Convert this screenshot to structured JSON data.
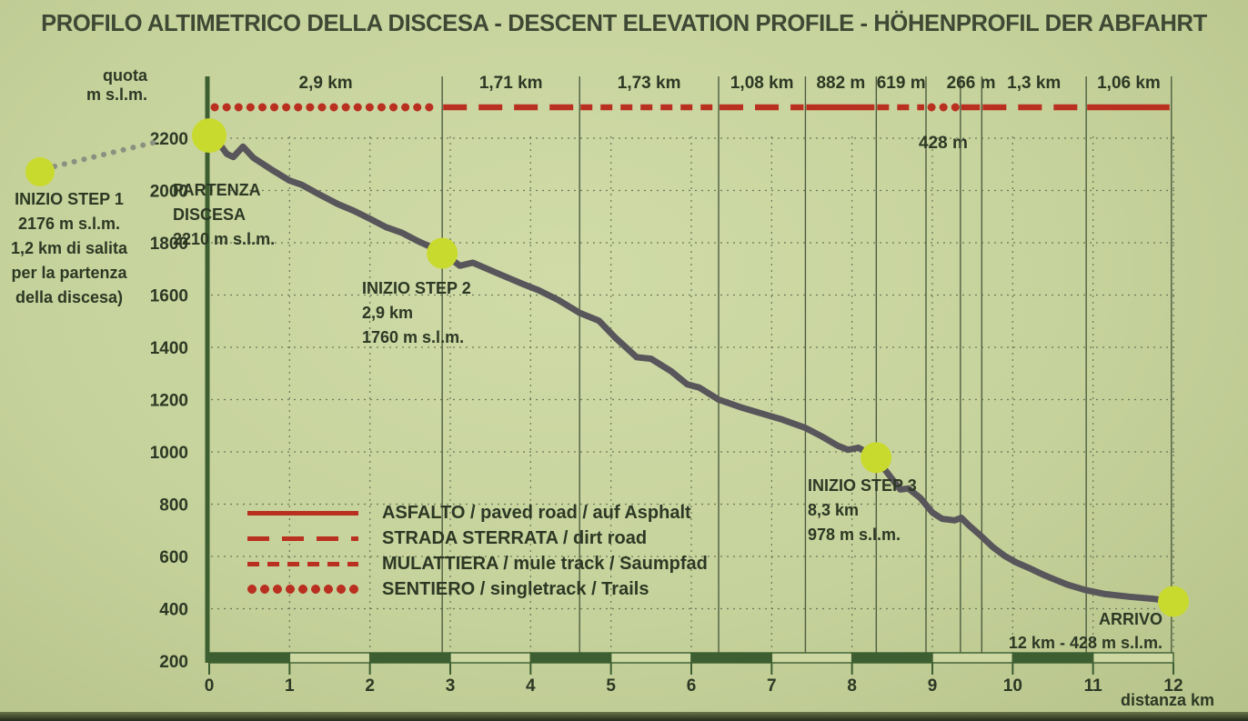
{
  "title": "PROFILO ALTIMETRICO DELLA DISCESA - DESCENT ELEVATION PROFILE - HÖHENPROFIL DER ABFAHRT",
  "axes": {
    "y_label_line1": "quota",
    "y_label_line2": "m s.l.m.",
    "x_label": "distanza km",
    "y_ticks": [
      2200,
      2000,
      1800,
      1600,
      1400,
      1200,
      1000,
      800,
      600,
      400,
      200
    ],
    "x_ticks": [
      0,
      1,
      2,
      3,
      4,
      5,
      6,
      7,
      8,
      9,
      10,
      11,
      12
    ]
  },
  "colors": {
    "background": "#c6d29b",
    "red_surface": "#b93020",
    "axis_green": "#3c5e31",
    "profile_gray": "#58565b",
    "waypoint_yellow": "#c9da2e",
    "text_dark": "#2c3824"
  },
  "legend": [
    {
      "style": "solid",
      "label": "ASFALTO / paved road / auf Asphalt"
    },
    {
      "style": "long-dash",
      "label": "STRADA STERRATA / dirt road"
    },
    {
      "style": "short-dash",
      "label": "MULATTIERA / mule track / Saumpfad"
    },
    {
      "style": "dotted",
      "label": "SENTIERO / singletrack / Trails"
    }
  ],
  "annotations": {
    "step1": {
      "lines": [
        "INIZIO STEP 1",
        "2176 m s.l.m.",
        "1,2 km di salita",
        "per la partenza",
        "della discesa)"
      ]
    },
    "partenza": {
      "lines": [
        "PARTENZA",
        "DISCESA",
        "2210 m s.l.m."
      ]
    },
    "step2": {
      "lines": [
        "INIZIO STEP 2",
        "2,9 km",
        "1760  m s.l.m."
      ]
    },
    "step3": {
      "lines": [
        "INIZIO STEP 3",
        "8,3 km",
        "978 m s.l.m."
      ]
    },
    "arrivo": {
      "lines": [
        "ARRIVO",
        "12 km - 428 m s.l.m."
      ]
    }
  },
  "chart_data": {
    "type": "line",
    "title": "PROFILO ALTIMETRICO DELLA DISCESA - DESCENT ELEVATION PROFILE - HÖHENPROFIL DER ABFAHRT",
    "xlabel": "distanza km",
    "ylabel": "quota m s.l.m.",
    "xlim": [
      0,
      12
    ],
    "ylim": [
      200,
      2200
    ],
    "grid": true,
    "surface_segments": [
      {
        "label": "2,9 km",
        "length_km": 2.9,
        "style": "dotted",
        "surface": "sentiero"
      },
      {
        "label": "1,71 km",
        "length_km": 1.71,
        "style": "long-dash",
        "surface": "strada-sterrata"
      },
      {
        "label": "1,73 km",
        "length_km": 1.73,
        "style": "short-dash",
        "surface": "mulattiera"
      },
      {
        "label": "1,08 km",
        "length_km": 1.08,
        "style": "long-dash",
        "surface": "strada-sterrata"
      },
      {
        "label": "882 m",
        "length_km": 0.882,
        "style": "solid",
        "surface": "asfalto"
      },
      {
        "label": "619 m",
        "length_km": 0.619,
        "style": "short-dash",
        "surface": "mulattiera"
      },
      {
        "label": "428 m",
        "length_km": 0.428,
        "style": "dotted",
        "surface": "sentiero",
        "label_below": true
      },
      {
        "label": "266 m",
        "length_km": 0.266,
        "style": "solid",
        "surface": "asfalto"
      },
      {
        "label": "1,3 km",
        "length_km": 1.3,
        "style": "long-dash",
        "surface": "strada-sterrata"
      },
      {
        "label": "1,06 km",
        "length_km": 1.06,
        "style": "solid",
        "surface": "asfalto"
      }
    ],
    "waypoints": [
      {
        "id": "inizio-step1",
        "name": "INIZIO STEP 1",
        "km": null,
        "elev": 2176
      },
      {
        "id": "partenza-discesa",
        "name": "PARTENZA DISCESA",
        "km": 0,
        "elev": 2210
      },
      {
        "id": "inizio-step2",
        "name": "INIZIO STEP 2",
        "km": 2.9,
        "elev": 1760
      },
      {
        "id": "inizio-step3",
        "name": "INIZIO STEP 3",
        "km": 8.3,
        "elev": 978
      },
      {
        "id": "arrivo",
        "name": "ARRIVO",
        "km": 12,
        "elev": 428
      }
    ],
    "profile": [
      [
        0,
        2210
      ],
      [
        0.1,
        2190
      ],
      [
        0.22,
        2140
      ],
      [
        0.3,
        2128
      ],
      [
        0.42,
        2168
      ],
      [
        0.55,
        2125
      ],
      [
        0.8,
        2075
      ],
      [
        1.0,
        2038
      ],
      [
        1.15,
        2022
      ],
      [
        1.35,
        1988
      ],
      [
        1.6,
        1948
      ],
      [
        1.8,
        1922
      ],
      [
        2.0,
        1892
      ],
      [
        2.2,
        1860
      ],
      [
        2.4,
        1838
      ],
      [
        2.6,
        1806
      ],
      [
        2.8,
        1778
      ],
      [
        2.9,
        1760
      ],
      [
        3.0,
        1740
      ],
      [
        3.12,
        1712
      ],
      [
        3.28,
        1724
      ],
      [
        3.55,
        1688
      ],
      [
        3.75,
        1662
      ],
      [
        3.92,
        1640
      ],
      [
        4.1,
        1618
      ],
      [
        4.35,
        1580
      ],
      [
        4.61,
        1532
      ],
      [
        4.85,
        1502
      ],
      [
        5.05,
        1438
      ],
      [
        5.2,
        1396
      ],
      [
        5.32,
        1362
      ],
      [
        5.5,
        1356
      ],
      [
        5.75,
        1308
      ],
      [
        5.95,
        1258
      ],
      [
        6.1,
        1246
      ],
      [
        6.34,
        1200
      ],
      [
        6.62,
        1170
      ],
      [
        6.93,
        1142
      ],
      [
        7.13,
        1124
      ],
      [
        7.42,
        1092
      ],
      [
        7.63,
        1058
      ],
      [
        7.82,
        1024
      ],
      [
        7.95,
        1008
      ],
      [
        8.08,
        1016
      ],
      [
        8.3,
        978
      ],
      [
        8.38,
        944
      ],
      [
        8.5,
        896
      ],
      [
        8.6,
        856
      ],
      [
        8.7,
        860
      ],
      [
        8.85,
        824
      ],
      [
        9.0,
        768
      ],
      [
        9.12,
        744
      ],
      [
        9.28,
        738
      ],
      [
        9.36,
        748
      ],
      [
        9.45,
        720
      ],
      [
        9.6,
        680
      ],
      [
        9.75,
        636
      ],
      [
        9.9,
        602
      ],
      [
        10.05,
        576
      ],
      [
        10.2,
        556
      ],
      [
        10.38,
        530
      ],
      [
        10.52,
        512
      ],
      [
        10.68,
        492
      ],
      [
        10.9,
        472
      ],
      [
        11.15,
        456
      ],
      [
        11.45,
        446
      ],
      [
        11.75,
        438
      ],
      [
        12,
        428
      ]
    ]
  }
}
